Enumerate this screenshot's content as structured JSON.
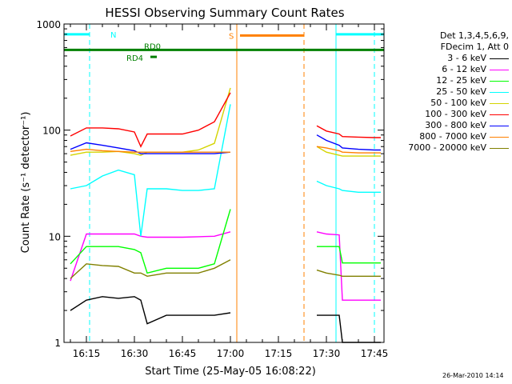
{
  "chart_data": {
    "type": "line",
    "title": "HESSI Observing Summary Count Rates",
    "xlabel": "Start Time (25-May-05 16:08:22)",
    "ylabel": "Count Rate (s⁻¹ detector⁻¹)",
    "yscale": "log",
    "ylim": [
      1,
      1000
    ],
    "xlim": [
      "16:08",
      "17:48"
    ],
    "x_ticks": [
      "16:15",
      "16:30",
      "16:45",
      "17:00",
      "17:15",
      "17:30",
      "17:45"
    ],
    "y_ticks": [
      "1",
      "10",
      "100",
      "1000"
    ],
    "legend_header": [
      "Det 1,3,4,5,6,9,",
      "FDecim 1, Att 0"
    ],
    "legend_position": "right",
    "x": [
      "16:10",
      "16:15",
      "16:20",
      "16:25",
      "16:30",
      "16:32",
      "16:34",
      "16:40",
      "16:45",
      "16:50",
      "16:55",
      "17:00",
      "17:03",
      "17:25",
      "17:27",
      "17:30",
      "17:34",
      "17:35",
      "17:40",
      "17:45",
      "17:47"
    ],
    "series": [
      {
        "name": "3 - 6 keV",
        "color": "#000000",
        "values": [
          2,
          2.5,
          2.7,
          2.6,
          2.7,
          2.5,
          1.5,
          1.8,
          1.8,
          1.8,
          1.8,
          1.9,
          null,
          null,
          1.8,
          1.8,
          1.8,
          1.0,
          1.0,
          1.0,
          1.0
        ]
      },
      {
        "name": "6 - 12 keV",
        "color": "#ff00ff",
        "values": [
          3.8,
          10.5,
          10.5,
          10.5,
          10.5,
          10,
          9.8,
          9.8,
          9.8,
          9.9,
          10,
          11,
          null,
          null,
          11,
          10.5,
          10.3,
          2.5,
          2.5,
          2.5,
          2.5
        ]
      },
      {
        "name": "12 - 25 keV",
        "color": "#00ff00",
        "values": [
          5.5,
          8,
          8,
          8,
          7.5,
          7,
          4.5,
          5,
          5,
          5,
          5.5,
          18,
          null,
          null,
          8,
          8,
          8,
          5.6,
          5.6,
          5.6,
          5.6
        ]
      },
      {
        "name": "25 - 50 keV",
        "color": "#00ffff",
        "values": [
          28,
          30,
          37,
          42,
          38,
          10,
          28,
          28,
          27,
          27,
          28,
          175,
          null,
          null,
          33,
          30,
          28,
          27,
          26,
          26,
          26
        ]
      },
      {
        "name": "50 - 100 keV",
        "color": "#d4d400",
        "values": [
          58,
          62,
          62,
          63,
          60,
          58,
          62,
          62,
          62,
          65,
          75,
          250,
          null,
          null,
          70,
          62,
          58,
          57,
          57,
          57,
          57
        ]
      },
      {
        "name": "100 - 300 keV",
        "color": "#ff0000",
        "values": [
          88,
          105,
          105,
          103,
          96,
          70,
          92,
          92,
          92,
          100,
          120,
          225,
          null,
          null,
          110,
          98,
          92,
          87,
          86,
          85,
          85
        ]
      },
      {
        "name": "300 - 800 keV",
        "color": "#0000ff",
        "values": [
          66,
          76,
          72,
          68,
          64,
          60,
          60,
          60,
          60,
          60,
          60,
          62,
          null,
          null,
          90,
          80,
          72,
          68,
          66,
          65,
          65
        ]
      },
      {
        "name": "800 - 7000 keV",
        "color": "#ff8000",
        "values": [
          63,
          66,
          64,
          63,
          62,
          62,
          62,
          62,
          62,
          62,
          62,
          62,
          null,
          null,
          70,
          68,
          64,
          62,
          61,
          61,
          61
        ]
      },
      {
        "name": "7000 - 20000 keV",
        "color": "#808000",
        "values": [
          4,
          5.5,
          5.3,
          5.2,
          4.5,
          4.5,
          4.2,
          4.5,
          4.5,
          4.5,
          5,
          6,
          null,
          null,
          4.8,
          4.5,
          4.3,
          4.2,
          4.2,
          4.2,
          4.2
        ]
      }
    ],
    "flags": [
      {
        "label": "N",
        "color": "#00ffff",
        "segments": [
          [
            "16:08",
            "16:16"
          ],
          [
            "17:33",
            "17:48"
          ]
        ],
        "level": 800
      },
      {
        "label": "S",
        "color": "#ff8000",
        "segments": [
          [
            "17:03",
            "17:23"
          ]
        ],
        "level": 780
      },
      {
        "label": "RD0",
        "color": "#008000",
        "segments": [
          [
            "16:08",
            "17:48"
          ]
        ],
        "level": 570
      },
      {
        "label": "RD4",
        "color": "#008000",
        "segments": [
          [
            "16:35",
            "16:37"
          ]
        ],
        "level": 490
      }
    ],
    "vlines": [
      {
        "x": "16:08",
        "color": "#00ffff",
        "style": "solid"
      },
      {
        "x": "16:16",
        "color": "#00ffff",
        "style": "dashed"
      },
      {
        "x": "17:02",
        "color": "#ff8000",
        "style": "solid"
      },
      {
        "x": "17:23",
        "color": "#ff8000",
        "style": "dashed"
      },
      {
        "x": "17:33",
        "color": "#00ffff",
        "style": "solid"
      },
      {
        "x": "17:45",
        "color": "#00ffff",
        "style": "dashed"
      }
    ]
  },
  "footer": "26-Mar-2010 14:14"
}
